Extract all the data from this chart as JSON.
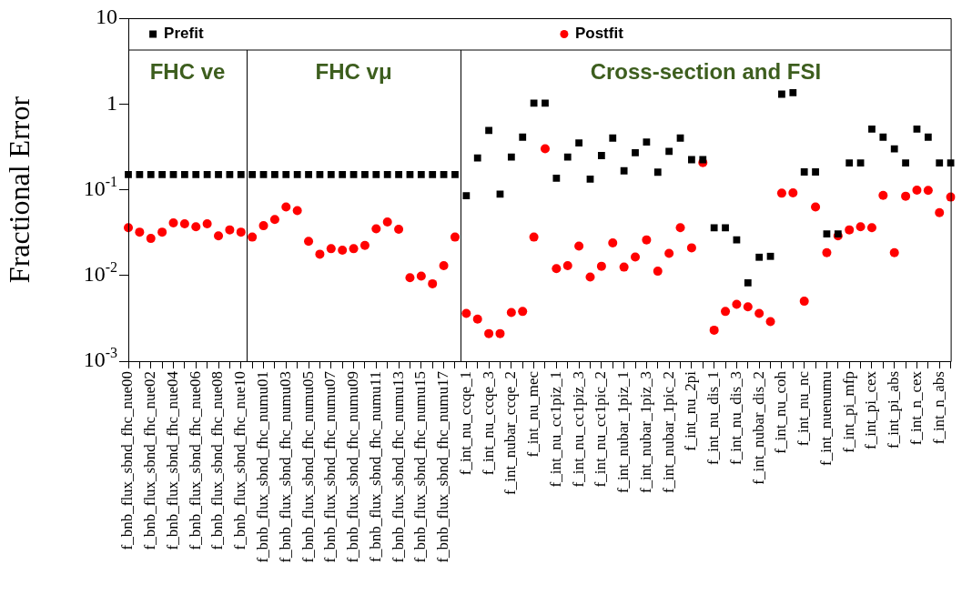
{
  "chart_data": {
    "type": "scatter",
    "ylabel": "Fractional Error",
    "log": "y",
    "legend": "top",
    "annotations": [
      "FHC ve",
      "FHC vμ",
      "Cross-section and FSI"
    ],
    "ylim": [
      0.001,
      10
    ],
    "yticks": [
      {
        "value": 0.001,
        "label": "10$^{-3}$"
      },
      {
        "value": 0.01,
        "label": "10$^{-2}$"
      },
      {
        "value": 0.1,
        "label": "10$^{-1}$"
      },
      1,
      10
    ],
    "categories": [
      "f_bnb_flux_sbnd_fhc_nue00",
      null,
      "f_bnb_flux_sbnd_fhc_nue02",
      null,
      "f_bnb_flux_sbnd_fhc_nue04",
      null,
      "f_bnb_flux_sbnd_fhc_nue06",
      null,
      "f_bnb_flux_sbnd_fhc_nue08",
      null,
      "f_bnb_flux_sbnd_fhc_nue10",
      null,
      "f_bnb_flux_sbnd_fhc_numu01",
      null,
      "f_bnb_flux_sbnd_fhc_numu03",
      null,
      "f_bnb_flux_sbnd_fhc_numu05",
      null,
      "f_bnb_flux_sbnd_fhc_numu07",
      null,
      "f_bnb_flux_sbnd_fhc_numu09",
      null,
      "f_bnb_flux_sbnd_fhc_numu11",
      null,
      "f_bnb_flux_sbnd_fhc_numu13",
      null,
      "f_bnb_flux_sbnd_fhc_numu15",
      null,
      "f_bnb_flux_sbnd_fhc_numu17",
      null,
      "f_int_nu_ccqe_1",
      null,
      "f_int_nu_ccqe_3",
      null,
      "f_int_nubar_ccqe_2",
      null,
      "f_int_nu_mec",
      null,
      "f_int_nu_cc1piz_1",
      null,
      "f_int_nu_cc1piz_3",
      null,
      "f_int_nu_cc1pic_2",
      null,
      "f_int_nubar_1piz_1",
      null,
      "f_int_nubar_1piz_3",
      null,
      "f_int_nubar_1pic_2",
      null,
      "f_int_nu_2pi",
      null,
      "f_int_nu_dis_1",
      null,
      "f_int_nu_dis_3",
      null,
      "f_int_nubar_dis_2",
      null,
      "f_int_nu_coh",
      null,
      "f_int_nu_nc",
      null,
      "f_int_nuenumu",
      null,
      "f_int_pi_mfp",
      null,
      "f_int_pi_cex",
      null,
      "f_int_pi_abs",
      null,
      "f_int_n_cex",
      null,
      "f_int_n_abs",
      null
    ],
    "series": [
      {
        "name": "Prefit",
        "color": "#000000",
        "marker": "square",
        "values": [
          0.15,
          0.15,
          0.15,
          0.15,
          0.15,
          0.15,
          0.15,
          0.15,
          0.15,
          0.15,
          0.15,
          0.15,
          0.15,
          0.15,
          0.15,
          0.15,
          0.15,
          0.15,
          0.15,
          0.15,
          0.15,
          0.15,
          0.15,
          0.15,
          0.15,
          0.15,
          0.15,
          0.15,
          0.15,
          0.15,
          0.085,
          0.235,
          0.49,
          0.089,
          0.24,
          0.41,
          1.02,
          1.02,
          0.136,
          0.24,
          0.35,
          0.133,
          0.25,
          0.4,
          0.166,
          0.27,
          0.36,
          0.16,
          0.28,
          0.4,
          0.224,
          0.224,
          0.036,
          0.036,
          0.026,
          0.0082,
          0.0163,
          0.0167,
          1.3,
          1.35,
          0.161,
          0.161,
          0.0305,
          0.0305,
          0.205,
          0.205,
          0.51,
          0.41,
          0.3,
          0.205,
          0.51,
          0.41,
          0.205,
          0.205
        ]
      },
      {
        "name": "Postfit",
        "color": "#ff0000",
        "marker": "circle",
        "values": [
          0.036,
          0.032,
          0.027,
          0.032,
          0.041,
          0.04,
          0.037,
          0.04,
          0.029,
          0.034,
          0.032,
          0.028,
          0.038,
          0.045,
          0.063,
          0.057,
          0.025,
          0.0177,
          0.0205,
          0.0197,
          0.0205,
          0.0224,
          0.035,
          0.042,
          0.0345,
          0.0094,
          0.0098,
          0.008,
          0.013,
          0.028,
          0.0036,
          0.0031,
          0.0021,
          0.0021,
          0.0037,
          0.0038,
          0.028,
          0.3,
          0.012,
          0.013,
          0.022,
          0.0096,
          0.0128,
          0.024,
          0.0125,
          0.0164,
          0.026,
          0.0112,
          0.0181,
          0.036,
          0.021,
          0.207,
          0.0023,
          0.0038,
          0.0046,
          0.0043,
          0.0036,
          0.0029,
          0.091,
          0.092,
          0.005,
          0.063,
          0.0184,
          0.029,
          0.034,
          0.037,
          0.036,
          0.086,
          0.0184,
          0.084,
          0.099,
          0.098,
          0.054,
          0.082
        ]
      }
    ]
  }
}
